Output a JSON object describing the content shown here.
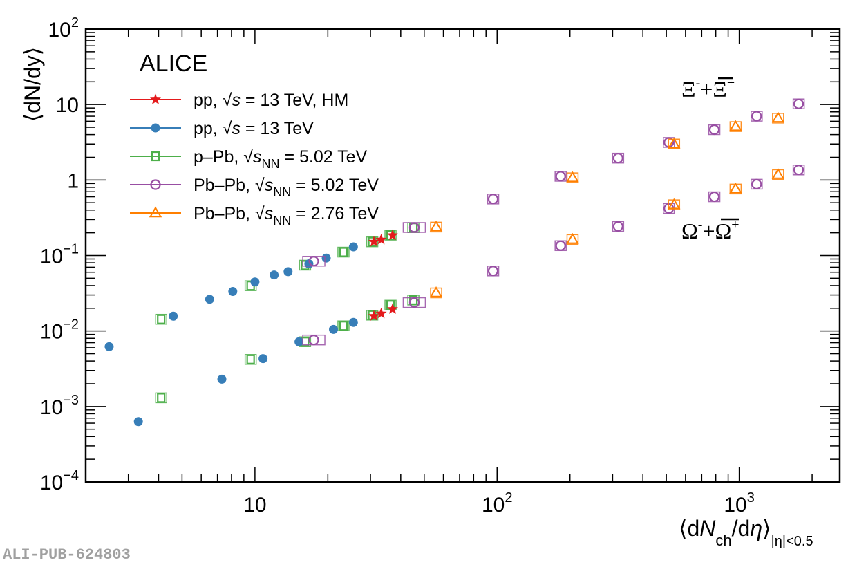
{
  "chart_data": {
    "type": "scatter",
    "title": "",
    "experiment_label": "ALICE",
    "xlabel": "⟨dN_ch/dη⟩_|η|<0.5",
    "xlabel_parts": {
      "open": "⟨d",
      "N": "N",
      "sub": "ch",
      "mid": "/d",
      "eta": "η",
      "close": "⟩",
      "range_sub": "|η|<0.5"
    },
    "ylabel": "⟨dN/dy⟩",
    "xscale": "log",
    "yscale": "log",
    "xlim": [
      2,
      2600
    ],
    "ylim": [
      0.0001,
      100
    ],
    "x_tick_labels": [
      {
        "value": 10,
        "base": "10",
        "exp": ""
      },
      {
        "value": 100,
        "base": "10",
        "exp": "2"
      },
      {
        "value": 1000,
        "base": "10",
        "exp": "3"
      }
    ],
    "y_tick_labels": [
      {
        "value": 100,
        "base": "10",
        "exp": "2"
      },
      {
        "value": 10,
        "base": "10",
        "exp": ""
      },
      {
        "value": 1,
        "base": "1",
        "exp": ""
      },
      {
        "value": 0.1,
        "base": "10",
        "exp": "−1"
      },
      {
        "value": 0.01,
        "base": "10",
        "exp": "−2"
      },
      {
        "value": 0.001,
        "base": "10",
        "exp": "−3"
      },
      {
        "value": 0.0001,
        "base": "10",
        "exp": "−4"
      }
    ],
    "grid": false,
    "legend_position": "top-left",
    "annotations": [
      {
        "text": "Ξ⁻+Ξ̄⁺",
        "base1": "Ξ",
        "sup1": "-",
        "plus": "+",
        "base2": "Ξ",
        "sup2": "+",
        "position": "upper-right"
      },
      {
        "text": "Ω⁻+Ω̄⁺",
        "base1": "Ω",
        "sup1": "-",
        "plus": "+",
        "base2": "Ω",
        "sup2": "+",
        "position": "middle-right"
      }
    ],
    "series": [
      {
        "name": "pp, √s = 13 TeV, HM",
        "legend": {
          "prefix": "pp, ",
          "sqrt": "s",
          "sub": "",
          "suffix": " = 13 TeV, HM"
        },
        "color": "#e41a1c",
        "marker": "star-filled",
        "xi": {
          "x": [
            31.0,
            33.2,
            37.0
          ],
          "y": [
            0.152,
            0.162,
            0.185
          ]
        },
        "omega": {
          "x": [
            31.0,
            33.2,
            37.0
          ],
          "y": [
            0.0158,
            0.017,
            0.0195
          ]
        }
      },
      {
        "name": "pp, √s = 13 TeV",
        "legend": {
          "prefix": "pp, ",
          "sqrt": "s",
          "sub": "",
          "suffix": " = 13 TeV"
        },
        "color": "#377eb8",
        "marker": "circle-filled",
        "xi": {
          "x": [
            2.5,
            4.6,
            6.5,
            8.1,
            10.0,
            12.0,
            13.7,
            16.7,
            19.7,
            25.5
          ],
          "y": [
            0.0062,
            0.0157,
            0.0263,
            0.0334,
            0.0446,
            0.0552,
            0.0611,
            0.0776,
            0.0925,
            0.13
          ]
        },
        "omega": {
          "x": [
            3.3,
            7.3,
            10.8,
            15.2,
            21.1,
            25.5
          ],
          "y": [
            0.00063,
            0.0023,
            0.0043,
            0.0072,
            0.0105,
            0.013
          ]
        }
      },
      {
        "name": "p–Pb, √sNN = 5.02 TeV",
        "legend": {
          "prefix": "p–Pb, ",
          "sqrt": "s",
          "sub": "NN",
          "suffix": " = 5.02 TeV"
        },
        "color": "#4daf4a",
        "marker": "square-open",
        "xi": {
          "x": [
            4.1,
            9.6,
            16.1,
            23.2,
            30.5,
            36.3,
            45.1
          ],
          "y": [
            0.0143,
            0.0398,
            0.0745,
            0.111,
            0.152,
            0.186,
            0.234
          ]
        },
        "omega": {
          "x": [
            4.1,
            9.6,
            16.1,
            23.2,
            30.5,
            36.3,
            45.1
          ],
          "y": [
            0.0013,
            0.0042,
            0.0072,
            0.0117,
            0.0162,
            0.022,
            0.0257
          ]
        }
      },
      {
        "name": "Pb–Pb, √sNN = 5.02 TeV",
        "legend": {
          "prefix": "Pb–Pb, ",
          "sqrt": "s",
          "sub": "NN",
          "suffix": " = 5.02 TeV"
        },
        "color": "#984ea3",
        "marker": "circle-open",
        "xi": {
          "x": [
            17.5,
            45.5,
            96.3,
            183,
            316,
            512,
            789,
            1180,
            1760
          ],
          "y": [
            0.084,
            0.235,
            0.56,
            1.12,
            1.95,
            3.15,
            4.65,
            7.0,
            10.2
          ]
        },
        "omega": {
          "x": [
            17.5,
            45.5,
            96.3,
            183,
            316,
            512,
            789,
            1180,
            1760
          ],
          "y": [
            0.0076,
            0.0238,
            0.0625,
            0.135,
            0.243,
            0.42,
            0.6,
            0.88,
            1.36
          ]
        }
      },
      {
        "name": "Pb–Pb, √sNN = 2.76 TeV",
        "legend": {
          "prefix": "Pb–Pb, ",
          "sqrt": "s",
          "sub": "NN",
          "suffix": " = 2.76 TeV"
        },
        "color": "#ff7f00",
        "marker": "triangle-open",
        "xi": {
          "x": [
            56.0,
            205,
            538,
            966,
            1447
          ],
          "y": [
            0.238,
            1.07,
            3.0,
            5.1,
            6.6
          ]
        },
        "omega": {
          "x": [
            56.0,
            205,
            538,
            966,
            1447
          ],
          "y": [
            0.032,
            0.163,
            0.47,
            0.76,
            1.18
          ]
        }
      }
    ]
  },
  "footer": {
    "publication_id": "ALI-PUB-624803"
  }
}
